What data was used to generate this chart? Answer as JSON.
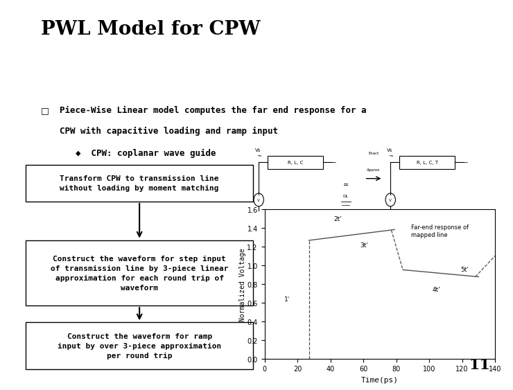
{
  "title": "PWL Model for CPW",
  "title_fontsize": 20,
  "background_color": "#ffffff",
  "bullet1_line1": "Piece-Wise Linear model computes the far end response for a",
  "bullet1_line2": "CPW with capacitive loading and ramp input",
  "bullet1_sub": "CPW: coplanar wave guide",
  "box1_text": "Transform CPW to transmission line\nwithout loading by moment matching",
  "box2_text": "Construct the waveform for step input\nof transmission line by 3-piece linear\napproximation for each round trip of\nwaveform",
  "box3_text": "Construct the waveform for ramp\ninput by over 3-piece approximation\nper round trip",
  "plot_xlabel": "Time(ps)",
  "plot_ylabel": "Normalized Voltage",
  "plot_xlim": [
    0,
    140
  ],
  "plot_ylim": [
    0,
    1.6
  ],
  "plot_xticks": [
    0,
    20,
    40,
    60,
    80,
    100,
    120,
    140
  ],
  "plot_yticks": [
    0,
    0.2,
    0.4,
    0.6,
    0.8,
    1.0,
    1.2,
    1.4,
    1.6
  ],
  "plot_legend": "Far-end response of\nmapped line",
  "slide_number": "11",
  "text_color": "#000000",
  "line_color": "#505050"
}
